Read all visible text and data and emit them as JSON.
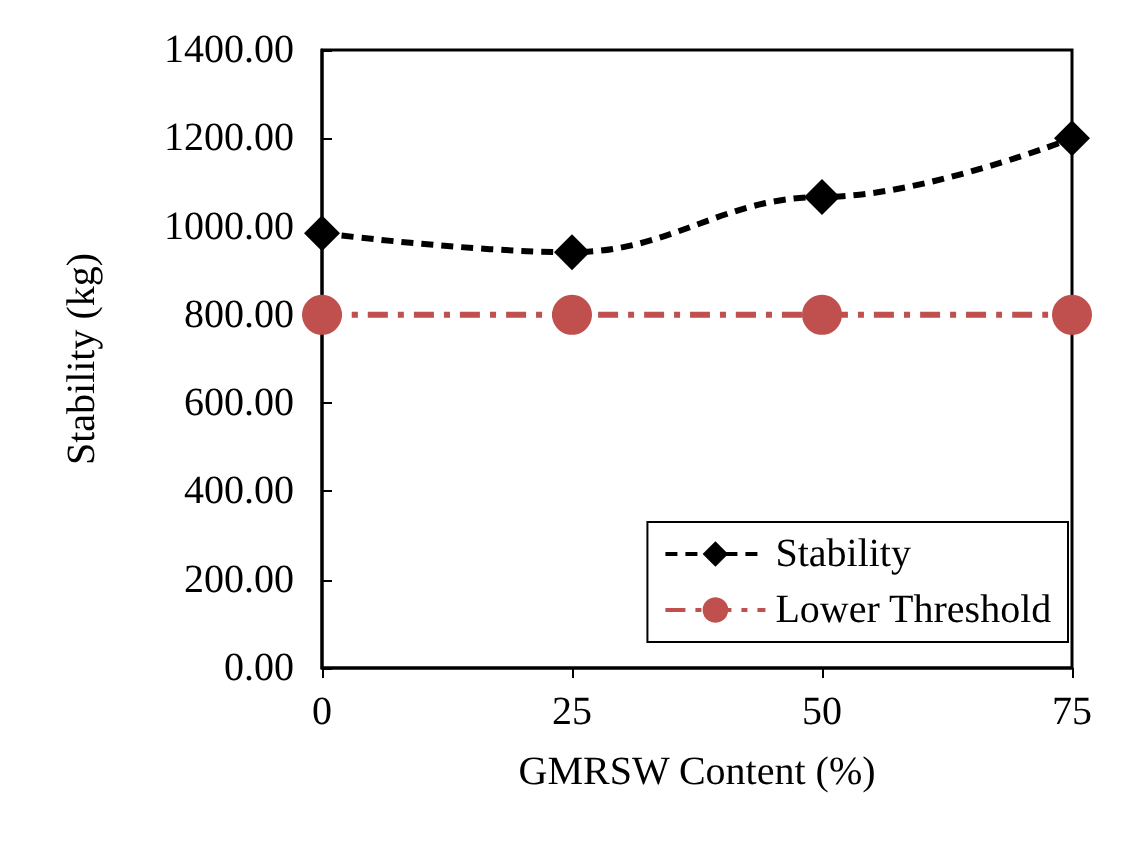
{
  "chart_data": {
    "type": "line",
    "xlabel": "GMRSW Content (%)",
    "ylabel": "Stability (kg)",
    "x": [
      0,
      25,
      50,
      75
    ],
    "series": [
      {
        "name": "Stability",
        "color": "#000000",
        "values": [
          985,
          942,
          1067,
          1200
        ],
        "marker": "diamond",
        "line_style": "dashed"
      },
      {
        "name": "Lower Threshold",
        "color": "#c0504d",
        "values": [
          800,
          800,
          800,
          800
        ],
        "marker": "circle",
        "line_style": "dashdot"
      }
    ],
    "xlim": [
      0,
      75
    ],
    "xticks": [
      0,
      25,
      50,
      75
    ],
    "ylim": [
      0,
      1400
    ],
    "yticks": [
      {
        "value": 0,
        "label": "0.00"
      },
      {
        "value": 200,
        "label": "200.00"
      },
      {
        "value": 400,
        "label": "400.00"
      },
      {
        "value": 600,
        "label": "600.00"
      },
      {
        "value": 800,
        "label": "800.00"
      },
      {
        "value": 1000,
        "label": "1000.00"
      },
      {
        "value": 1200,
        "label": "1200.00"
      },
      {
        "value": 1400,
        "label": "1400.00"
      }
    ],
    "grid": false,
    "legend": "bottom right"
  }
}
